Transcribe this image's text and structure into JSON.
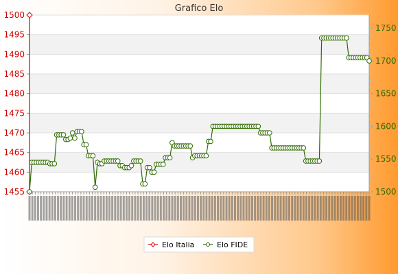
{
  "chart_data": {
    "type": "line",
    "title": "Grafico Elo",
    "y_left": {
      "ticks": [
        1455,
        1460,
        1465,
        1470,
        1475,
        1480,
        1485,
        1490,
        1495,
        1500
      ],
      "range": [
        1455,
        1500
      ],
      "color": "#dd0000"
    },
    "y_right": {
      "ticks": [
        1500,
        1550,
        1600,
        1650,
        1700,
        1750
      ],
      "range": [
        1500,
        1770
      ],
      "color": "#2e6b00"
    },
    "x_tick_count": 120,
    "series": [
      {
        "name": "Elo Italia",
        "axis": "left",
        "color": "#dd0000",
        "marker": "diamond",
        "points": [
          [
            0,
            1455
          ],
          [
            1,
            1500
          ]
        ]
      },
      {
        "name": "Elo FIDE",
        "axis": "right",
        "color": "#2e6b00",
        "marker": "circle",
        "values": [
          1500,
          1545,
          1545,
          1545,
          1545,
          1545,
          1545,
          1545,
          1545,
          1543,
          1543,
          1543,
          1587,
          1587,
          1587,
          1587,
          1580,
          1580,
          1582,
          1590,
          1582,
          1592,
          1592,
          1592,
          1572,
          1572,
          1555,
          1555,
          1555,
          1507,
          1545,
          1543,
          1543,
          1547,
          1547,
          1547,
          1547,
          1547,
          1547,
          1547,
          1540,
          1540,
          1537,
          1537,
          1537,
          1540,
          1547,
          1547,
          1547,
          1547,
          1512,
          1512,
          1537,
          1537,
          1530,
          1530,
          1542,
          1542,
          1542,
          1542,
          1552,
          1552,
          1552,
          1575,
          1570,
          1570,
          1570,
          1570,
          1570,
          1570,
          1570,
          1570,
          1552,
          1555,
          1555,
          1555,
          1555,
          1555,
          1555,
          1577,
          1577,
          1600,
          1600,
          1600,
          1600,
          1600,
          1600,
          1600,
          1600,
          1600,
          1600,
          1600,
          1600,
          1600,
          1600,
          1600,
          1600,
          1600,
          1600,
          1600,
          1600,
          1600,
          1590,
          1590,
          1590,
          1590,
          1590,
          1567,
          1567,
          1567,
          1567,
          1567,
          1567,
          1567,
          1567,
          1567,
          1567,
          1567,
          1567,
          1567,
          1567,
          1567,
          1547,
          1547,
          1547,
          1547,
          1547,
          1547,
          1547,
          1735,
          1735,
          1735,
          1735,
          1735,
          1735,
          1735,
          1735,
          1735,
          1735,
          1735,
          1735,
          1705,
          1705,
          1705,
          1705,
          1705,
          1705,
          1705,
          1705,
          1705,
          1700
        ]
      }
    ],
    "legend": {
      "placement": "bottom",
      "items": [
        "Elo Italia",
        "Elo FIDE"
      ]
    },
    "grid": true,
    "grid_bands": [
      "#ffffff",
      "#f2f2f2"
    ],
    "background": "#ffffff"
  }
}
